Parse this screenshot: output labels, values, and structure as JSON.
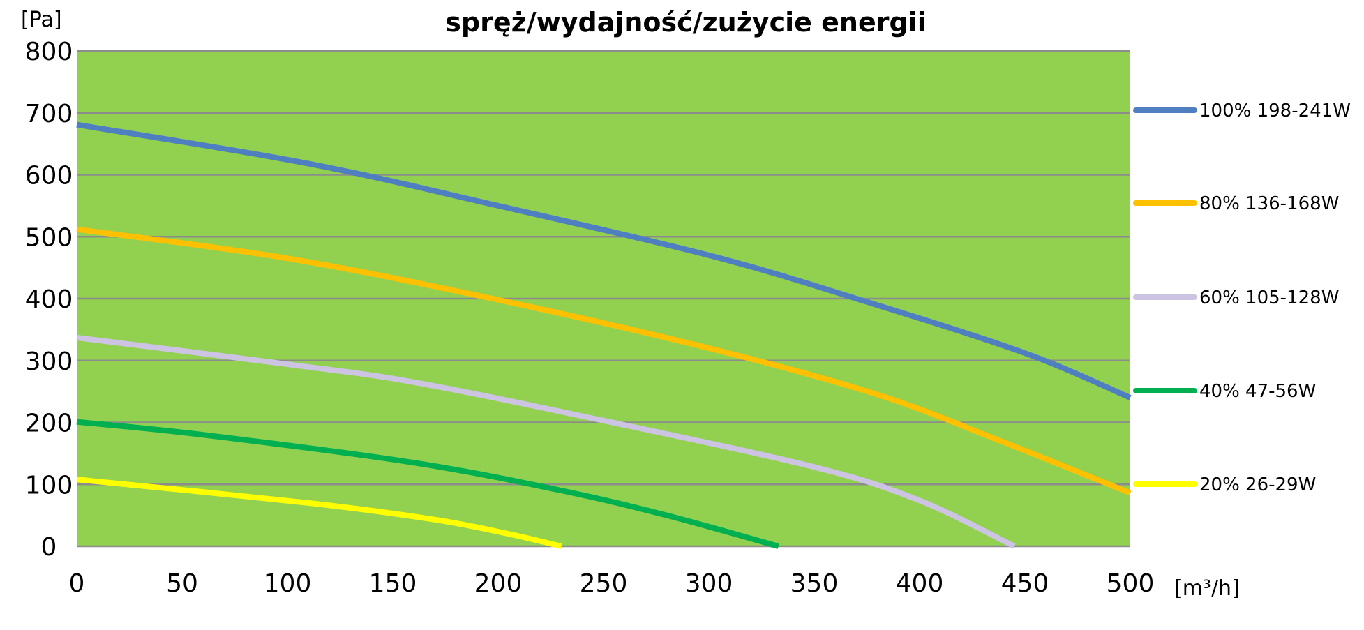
{
  "chart_data": {
    "type": "line",
    "title": "spręż/wydajność/zużycie energii",
    "xlabel": "[m³/h]",
    "ylabel": "[Pa]",
    "xlim": [
      0,
      500
    ],
    "ylim": [
      0,
      800
    ],
    "xticks": [
      0,
      50,
      100,
      150,
      200,
      250,
      300,
      350,
      400,
      450,
      500
    ],
    "yticks": [
      0,
      100,
      200,
      300,
      400,
      500,
      600,
      700,
      800
    ],
    "grid": "horizontal",
    "plot_background": "#92d050",
    "gridline_color": "#8c8c8c",
    "legend_position": "right",
    "series": [
      {
        "name": "100% 198-241W",
        "color": "#4f7fc1",
        "points": [
          [
            0,
            681
          ],
          [
            110,
            618
          ],
          [
            200,
            550
          ],
          [
            300,
            470
          ],
          [
            370,
            400
          ],
          [
            450,
            312
          ],
          [
            500,
            240
          ]
        ]
      },
      {
        "name": "80% 136-168W",
        "color": "#ffc000",
        "points": [
          [
            0,
            512
          ],
          [
            100,
            465
          ],
          [
            200,
            398
          ],
          [
            300,
            320
          ],
          [
            380,
            245
          ],
          [
            440,
            168
          ],
          [
            500,
            86
          ]
        ]
      },
      {
        "name": "60% 105-128W",
        "color": "#cdc3e2",
        "points": [
          [
            0,
            337
          ],
          [
            100,
            294
          ],
          [
            160,
            265
          ],
          [
            250,
            203
          ],
          [
            350,
            128
          ],
          [
            400,
            74
          ],
          [
            445,
            0
          ]
        ]
      },
      {
        "name": "40% 47-56W",
        "color": "#00b050",
        "points": [
          [
            0,
            201
          ],
          [
            60,
            180
          ],
          [
            160,
            135
          ],
          [
            230,
            90
          ],
          [
            280,
            50
          ],
          [
            333,
            0
          ]
        ]
      },
      {
        "name": "20% 26-29W",
        "color": "#ffff00",
        "points": [
          [
            0,
            108
          ],
          [
            110,
            70
          ],
          [
            170,
            43
          ],
          [
            205,
            20
          ],
          [
            230,
            0
          ]
        ]
      }
    ]
  }
}
